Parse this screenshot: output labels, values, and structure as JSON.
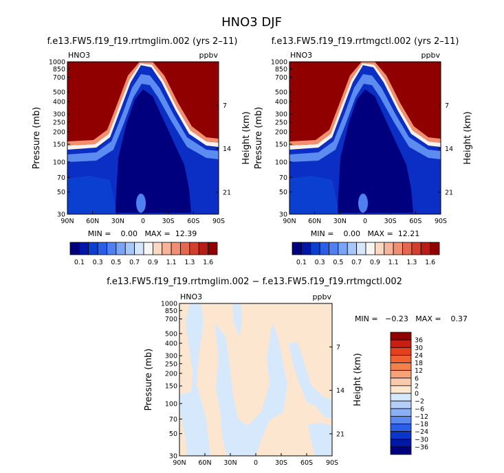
{
  "figure": {
    "title": "HNO3 DJF"
  },
  "chart_data": [
    {
      "type": "heatmap",
      "title": "f.e13.FW5.f19_f19.rrtmglim.002 (yrs 2–11)",
      "variable": "HNO3",
      "units": "ppbv",
      "ylabel": "Pressure (mb)",
      "ylabel_right": "Height (km)",
      "x_ticks": [
        "90N",
        "60N",
        "30N",
        "0",
        "30S",
        "60S",
        "90S"
      ],
      "y_ticks": [
        "30",
        "50",
        "70",
        "100",
        "150",
        "200",
        "250",
        "300",
        "400",
        "500",
        "700",
        "850",
        "1000"
      ],
      "y_ticks_right": [
        "21",
        "14",
        "7"
      ],
      "ylim": [
        1000,
        30
      ],
      "y_scale": "log",
      "stats": "MIN =    0.00   MAX =  12.39",
      "colorbar": {
        "labels": [
          "0.1",
          "0.3",
          "0.5",
          "0.7",
          "0.9",
          "1.1",
          "1.3",
          "1.6"
        ],
        "colors": [
          "#00007f",
          "#0016a8",
          "#0a3fd0",
          "#2a5ee8",
          "#4f80f2",
          "#7aa5f7",
          "#a7c6fa",
          "#d6e6fc",
          "#f8f6f4",
          "#fcd8c2",
          "#f8b49a",
          "#f28f72",
          "#e6674e",
          "#d43e2c",
          "#b81c17",
          "#900000"
        ]
      }
    },
    {
      "type": "heatmap",
      "title": "f.e13.FW5.f19_f19.rrtmgctl.002 (yrs 2–11)",
      "variable": "HNO3",
      "units": "ppbv",
      "ylabel": "Pressure (mb)",
      "ylabel_right": "Height (km)",
      "x_ticks": [
        "90N",
        "60N",
        "30N",
        "0",
        "30S",
        "60S",
        "90S"
      ],
      "y_ticks": [
        "30",
        "50",
        "70",
        "100",
        "150",
        "200",
        "250",
        "300",
        "400",
        "500",
        "700",
        "850",
        "1000"
      ],
      "y_ticks_right": [
        "21",
        "14",
        "7"
      ],
      "ylim": [
        1000,
        30
      ],
      "y_scale": "log",
      "stats": "MIN =    0.00   MAX =  12.21",
      "colorbar": {
        "labels": [
          "0.1",
          "0.3",
          "0.5",
          "0.7",
          "0.9",
          "1.1",
          "1.3",
          "1.6"
        ],
        "colors": [
          "#00007f",
          "#0016a8",
          "#0a3fd0",
          "#2a5ee8",
          "#4f80f2",
          "#7aa5f7",
          "#a7c6fa",
          "#d6e6fc",
          "#f8f6f4",
          "#fcd8c2",
          "#f8b49a",
          "#f28f72",
          "#e6674e",
          "#d43e2c",
          "#b81c17",
          "#900000"
        ]
      }
    },
    {
      "type": "heatmap",
      "title": "f.e13.FW5.f19_f19.rrtmglim.002 − f.e13.FW5.f19_f19.rrtmgctl.002",
      "variable": "HNO3",
      "units": "ppbv",
      "ylabel": "Pressure (mb)",
      "ylabel_right": "Height (km)",
      "x_ticks": [
        "90N",
        "60N",
        "30N",
        "0",
        "30S",
        "60S",
        "90S"
      ],
      "y_ticks": [
        "30",
        "50",
        "70",
        "100",
        "150",
        "200",
        "250",
        "300",
        "400",
        "500",
        "700",
        "850",
        "1000"
      ],
      "y_ticks_right": [
        "21",
        "14",
        "7"
      ],
      "ylim": [
        1000,
        30
      ],
      "y_scale": "log",
      "stats": "MIN =   −0.23   MAX =    0.37",
      "colorbar": {
        "labels": [
          "36",
          "30",
          "24",
          "18",
          "12",
          "6",
          "2",
          "0",
          "−2",
          "−6",
          "−12",
          "−18",
          "−24",
          "−30",
          "−36"
        ],
        "colors": [
          "#900000",
          "#c81e14",
          "#e4401e",
          "#f06030",
          "#f4804a",
          "#f8a078",
          "#fac8ac",
          "#fde6d0",
          "#d6e8fc",
          "#b4cefa",
          "#8cb0f6",
          "#5a8aee",
          "#2a5ee6",
          "#0a36cc",
          "#0018a8",
          "#00007f"
        ]
      }
    }
  ]
}
